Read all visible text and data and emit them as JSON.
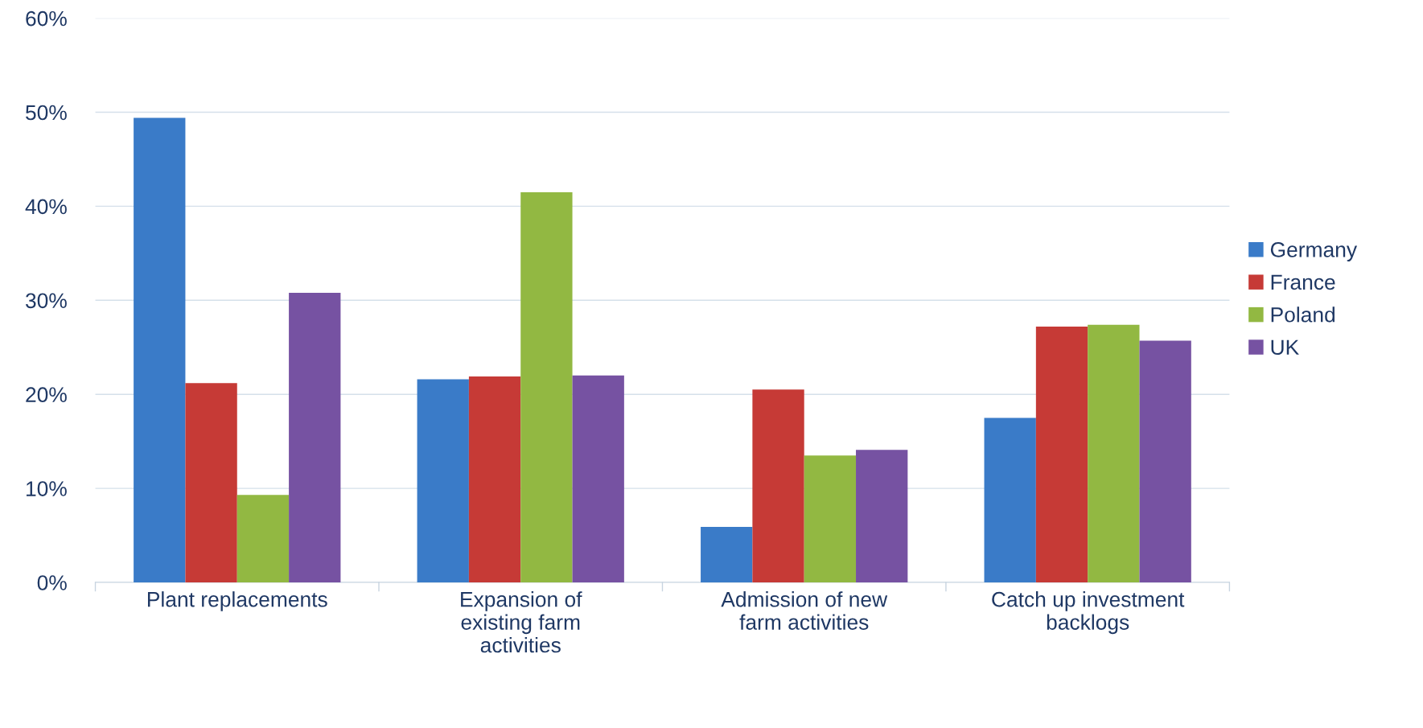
{
  "chart_data": {
    "type": "bar",
    "categories": [
      "Plant replacements",
      "Expansion of existing farm activities",
      "Admission of new farm activities",
      "Catch up investment backlogs"
    ],
    "series": [
      {
        "name": "Germany",
        "color": "#3a7bc8",
        "values": [
          49.4,
          21.6,
          5.9,
          17.5
        ]
      },
      {
        "name": "France",
        "color": "#c63a36",
        "values": [
          21.2,
          21.9,
          20.5,
          27.2
        ]
      },
      {
        "name": "Poland",
        "color": "#92b842",
        "values": [
          9.3,
          41.5,
          13.5,
          27.4
        ]
      },
      {
        "name": "UK",
        "color": "#7652a2",
        "values": [
          30.8,
          22.0,
          14.1,
          25.7
        ]
      }
    ],
    "ylim": [
      0,
      60
    ],
    "yticks": [
      {
        "value": 0,
        "label": "0%"
      },
      {
        "value": 10,
        "label": "10%"
      },
      {
        "value": 20,
        "label": "20%"
      },
      {
        "value": 30,
        "label": "30%"
      },
      {
        "value": 40,
        "label": "40%"
      },
      {
        "value": 50,
        "label": "50%"
      },
      {
        "value": 60,
        "label": "60%"
      }
    ],
    "grid": "y",
    "legend": "right"
  }
}
